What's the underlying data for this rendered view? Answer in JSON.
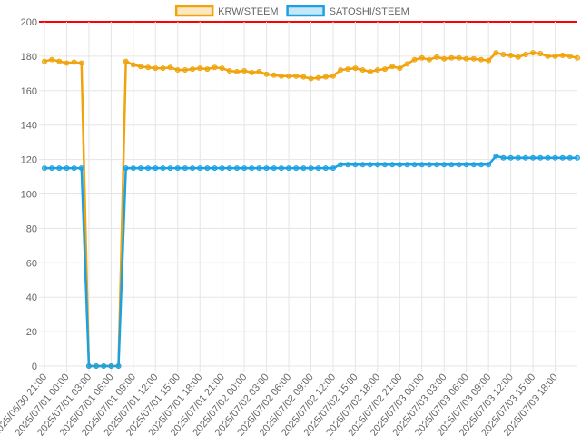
{
  "chart_data": {
    "type": "line",
    "categories": [
      "2025/06/30 21:00",
      null,
      null,
      "2025/07/01 00:00",
      null,
      null,
      "2025/07/01 03:00",
      null,
      null,
      "2025/07/01 06:00",
      null,
      null,
      "2025/07/01 09:00",
      null,
      null,
      "2025/07/01 12:00",
      null,
      null,
      "2025/07/01 15:00",
      null,
      null,
      "2025/07/01 18:00",
      null,
      null,
      "2025/07/01 21:00",
      null,
      null,
      "2025/07/02 00:00",
      null,
      null,
      "2025/07/02 03:00",
      null,
      null,
      "2025/07/02 06:00",
      null,
      null,
      "2025/07/02 09:00",
      null,
      null,
      "2025/07/02 12:00",
      null,
      null,
      "2025/07/02 15:00",
      null,
      null,
      "2025/07/02 18:00",
      null,
      null,
      "2025/07/02 21:00",
      null,
      null,
      "2025/07/03 00:00",
      null,
      null,
      "2025/07/03 03:00",
      null,
      null,
      "2025/07/03 06:00",
      null,
      null,
      "2025/07/03 09:00",
      null,
      null,
      "2025/07/03 12:00",
      null,
      null,
      "2025/07/03 15:00",
      null,
      null,
      "2025/07/03 18:00",
      null,
      null,
      null
    ],
    "series": [
      {
        "name": "KRW/STEEM",
        "color": "#f0a30a",
        "values": [
          177,
          178,
          177,
          176,
          176.5,
          176,
          0,
          0,
          0,
          0,
          0,
          177,
          175,
          174,
          173.5,
          173,
          173,
          173.5,
          172,
          172,
          172.5,
          173,
          172.5,
          173.5,
          173,
          171.5,
          171,
          171.5,
          170.5,
          171,
          169.5,
          169,
          168.5,
          168.5,
          168.5,
          168,
          167,
          167.5,
          168,
          168.5,
          172,
          172.5,
          173,
          172,
          171,
          172,
          172.5,
          174,
          173,
          175.5,
          178,
          179,
          178,
          179.5,
          178.5,
          179,
          179,
          178.5,
          178.5,
          178,
          177.5,
          182,
          181,
          180.5,
          179.5,
          181,
          182,
          181.5,
          180,
          180,
          180.5,
          180,
          179
        ]
      },
      {
        "name": "SATOSHI/STEEM",
        "color": "#1ba1e2",
        "values": [
          115,
          115,
          115,
          115,
          115,
          115,
          0,
          0,
          0,
          0,
          0,
          115,
          115,
          115,
          115,
          115,
          115,
          115,
          115,
          115,
          115,
          115,
          115,
          115,
          115,
          115,
          115,
          115,
          115,
          115,
          115,
          115,
          115,
          115,
          115,
          115,
          115,
          115,
          115,
          115,
          117,
          117,
          117,
          117,
          117,
          117,
          117,
          117,
          117,
          117,
          117,
          117,
          117,
          117,
          117,
          117,
          117,
          117,
          117,
          117,
          117,
          122,
          121,
          121,
          121,
          121,
          121,
          121,
          121,
          121,
          121,
          121,
          121
        ]
      }
    ],
    "ylim": [
      0,
      200
    ],
    "yticks": [
      0,
      20,
      40,
      60,
      80,
      100,
      120,
      140,
      160,
      180,
      200
    ],
    "grid": true,
    "top_line_color": "#ff0000"
  }
}
